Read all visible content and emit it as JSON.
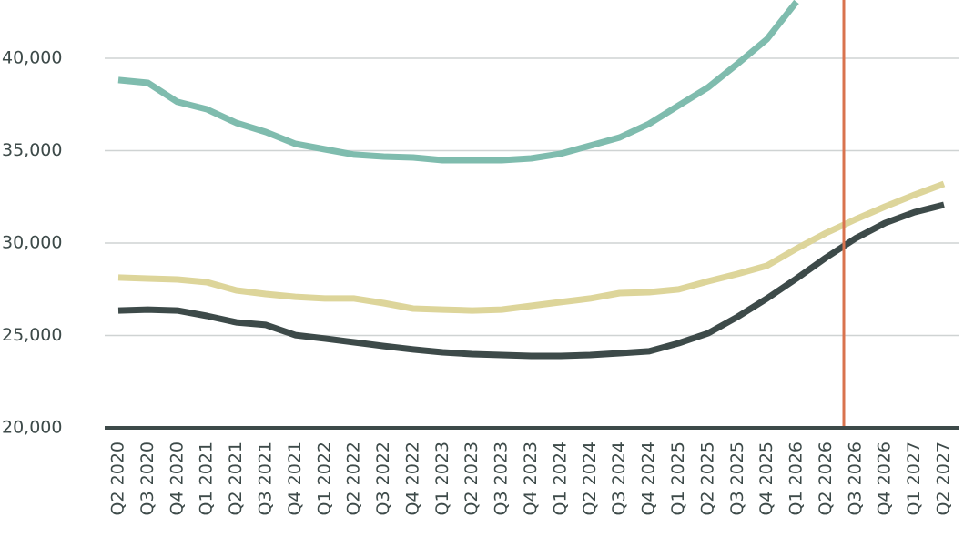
{
  "chart_data": {
    "type": "line",
    "categories": [
      "Q2 2020",
      "Q3 2020",
      "Q4 2020",
      "Q1 2021",
      "Q2 2021",
      "Q3 2021",
      "Q4 2021",
      "Q1 2022",
      "Q2 2022",
      "Q3 2022",
      "Q4 2022",
      "Q1 2023",
      "Q2 2023",
      "Q3 2023",
      "Q4 2023",
      "Q1 2024",
      "Q2 2024",
      "Q3 2024",
      "Q4 2024",
      "Q1 2025",
      "Q2 2025",
      "Q3 2025",
      "Q4 2025",
      "Q1 2026",
      "Q2 2026",
      "Q3 2026",
      "Q4 2026",
      "Q1 2027",
      "Q2 2027"
    ],
    "series": [
      {
        "color": "#7fbcae",
        "values": [
          38820,
          38670,
          37640,
          37240,
          36500,
          36010,
          35370,
          35070,
          34780,
          34680,
          34630,
          34480,
          34480,
          34480,
          34580,
          34830,
          35270,
          35710,
          36450,
          37440,
          38420,
          39700,
          41030,
          43050,
          null,
          null,
          null,
          null,
          null
        ]
      },
      {
        "color": "#ddd59a",
        "values": [
          28130,
          28080,
          28030,
          27880,
          27440,
          27240,
          27090,
          27000,
          27000,
          26750,
          26450,
          26400,
          26350,
          26400,
          26600,
          26800,
          27000,
          27290,
          27340,
          27490,
          27930,
          28330,
          28770,
          29700,
          30540,
          31280,
          31970,
          32610,
          33200
        ]
      },
      {
        "color": "#3d4a49",
        "values": [
          26350,
          26400,
          26350,
          26060,
          25710,
          25570,
          25020,
          24830,
          24630,
          24430,
          24240,
          24090,
          23990,
          23940,
          23890,
          23890,
          23940,
          24040,
          24140,
          24580,
          25120,
          26010,
          27000,
          28080,
          29210,
          30250,
          31080,
          31670,
          32070
        ]
      }
    ],
    "ylim": [
      20000,
      43150
    ],
    "yticks": [
      {
        "value": 20000,
        "label": "20,000"
      },
      {
        "value": 25000,
        "label": "25,000"
      },
      {
        "value": 30000,
        "label": "30,000"
      },
      {
        "value": 35000,
        "label": "35,000"
      },
      {
        "value": 40000,
        "label": "40,000"
      }
    ],
    "grid": true
  }
}
